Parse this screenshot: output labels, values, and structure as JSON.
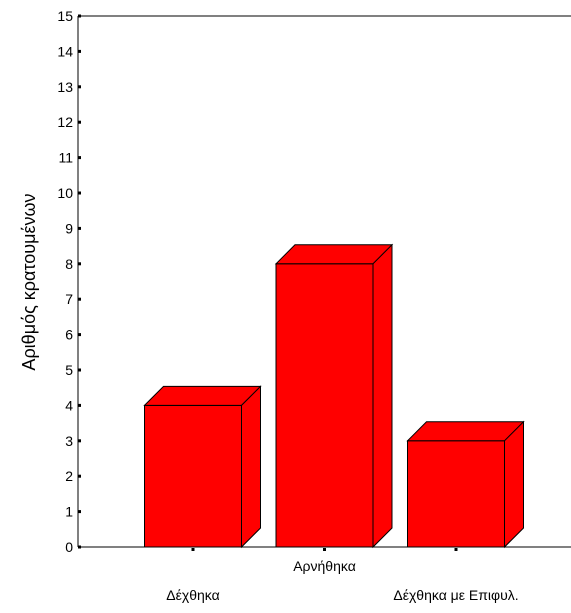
{
  "chart_data": {
    "type": "bar",
    "style": "3d",
    "categories": [
      "Δέχθηκα",
      "Αρνήθηκα",
      "Δέχθηκα με Επιφυλ."
    ],
    "values": [
      4,
      8,
      3
    ],
    "category_label_rows": [
      "bottom",
      "top",
      "bottom"
    ],
    "xlabel": "",
    "ylabel": "Αριθμός κρατουμένων",
    "ylim": [
      0,
      15
    ],
    "yticks": [
      "0",
      "1",
      "2",
      "3",
      "4",
      "5",
      "6",
      "7",
      "8",
      "9",
      "10",
      "11",
      "12",
      "13",
      "14",
      "15"
    ],
    "grid": false,
    "bar_color": "#ff0000",
    "edge_color": "#000000"
  }
}
